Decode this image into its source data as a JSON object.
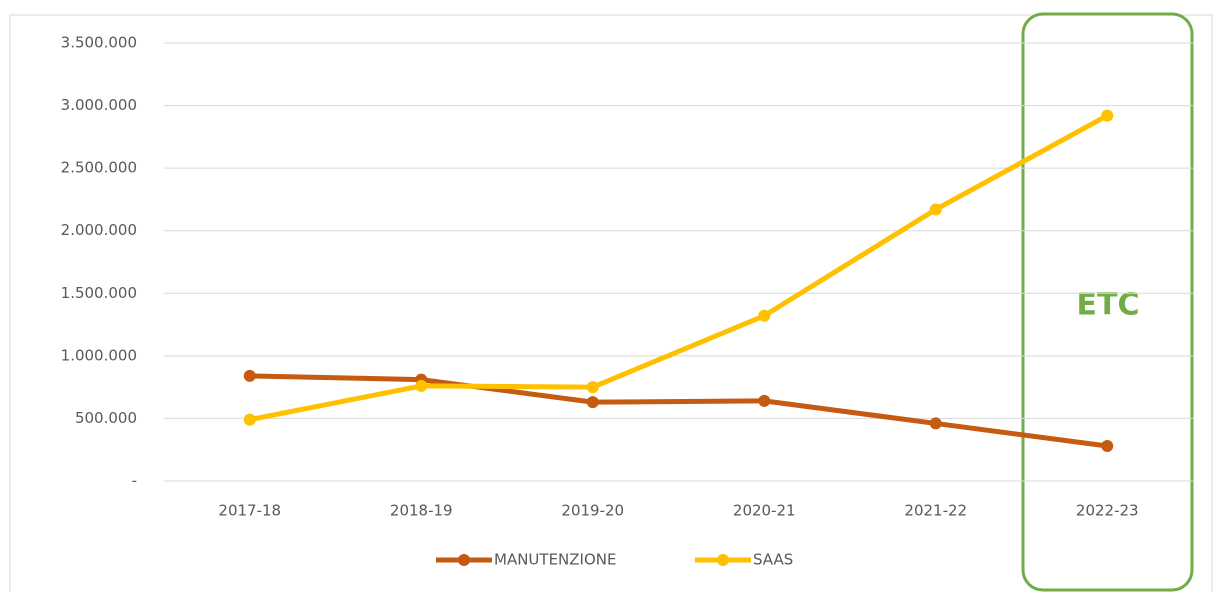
{
  "chart_data": {
    "type": "line",
    "categories": [
      "2017-18",
      "2018-19",
      "2019-20",
      "2020-21",
      "2021-22",
      "2022-23"
    ],
    "series": [
      {
        "name": "MANUTENZIONE",
        "color": "#c55a11",
        "values": [
          840000,
          810000,
          630000,
          640000,
          460000,
          280000
        ]
      },
      {
        "name": "SAAS",
        "color": "#ffc000",
        "values": [
          490000,
          760000,
          750000,
          1320000,
          2170000,
          2920000
        ]
      }
    ],
    "ylim": [
      0,
      3500000
    ],
    "yticks": [
      {
        "value": 0,
        "label": "-"
      },
      {
        "value": 500000,
        "label": "500.000"
      },
      {
        "value": 1000000,
        "label": "1.000.000"
      },
      {
        "value": 1500000,
        "label": "1.500.000"
      },
      {
        "value": 2000000,
        "label": "2.000.000"
      },
      {
        "value": 2500000,
        "label": "2.500.000"
      },
      {
        "value": 3000000,
        "label": "3.000.000"
      },
      {
        "value": 3500000,
        "label": "3.500.000"
      }
    ],
    "grid": true,
    "legend": "bottom",
    "annotation": "ETC"
  }
}
